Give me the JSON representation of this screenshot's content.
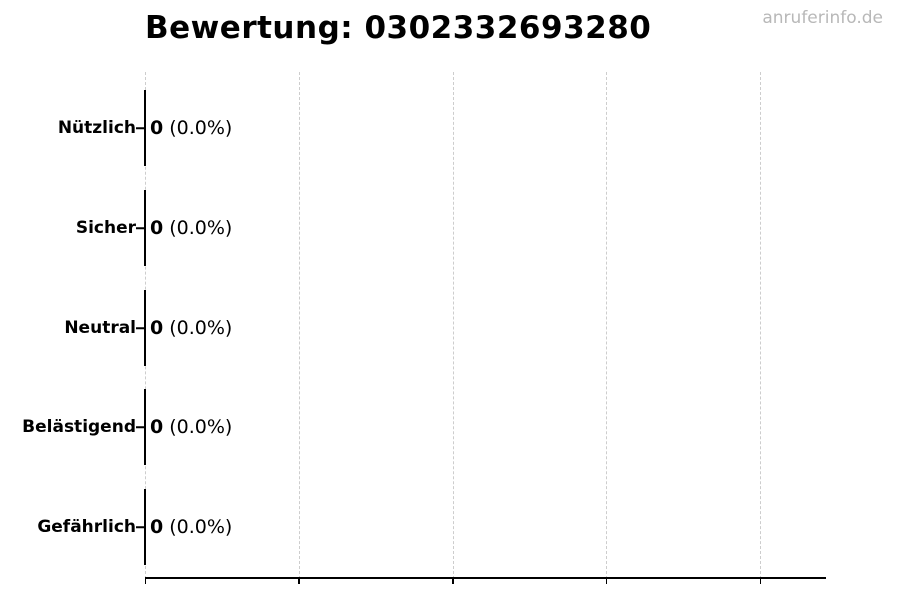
{
  "page": {
    "watermark": "anruferinfo.de",
    "background": "#ffffff"
  },
  "chart_data": {
    "type": "bar",
    "orientation": "horizontal",
    "title": "Bewertung: 0302332693280",
    "categories": [
      "Nützlich",
      "Sicher",
      "Neutral",
      "Belästigend",
      "Gefährlich"
    ],
    "values": [
      0,
      0,
      0,
      0,
      0
    ],
    "value_labels": [
      {
        "count": "0",
        "percent": "(0.0%)"
      },
      {
        "count": "0",
        "percent": "(0.0%)"
      },
      {
        "count": "0",
        "percent": "(0.0%)"
      },
      {
        "count": "0",
        "percent": "(0.0%)"
      },
      {
        "count": "0",
        "percent": "(0.0%)"
      }
    ],
    "xlabel": "",
    "ylabel": "",
    "x_axis": {
      "tick_count": 5,
      "tick_labels_visible": false
    },
    "grid": {
      "vertical": true,
      "style": "dashed",
      "on": true
    },
    "legend": "none",
    "colors": {
      "text": "#000000",
      "axis": "#000000",
      "bar_edge": "#000000",
      "gridline": "#cdcdcd",
      "watermark": "#b8b8b8"
    }
  }
}
